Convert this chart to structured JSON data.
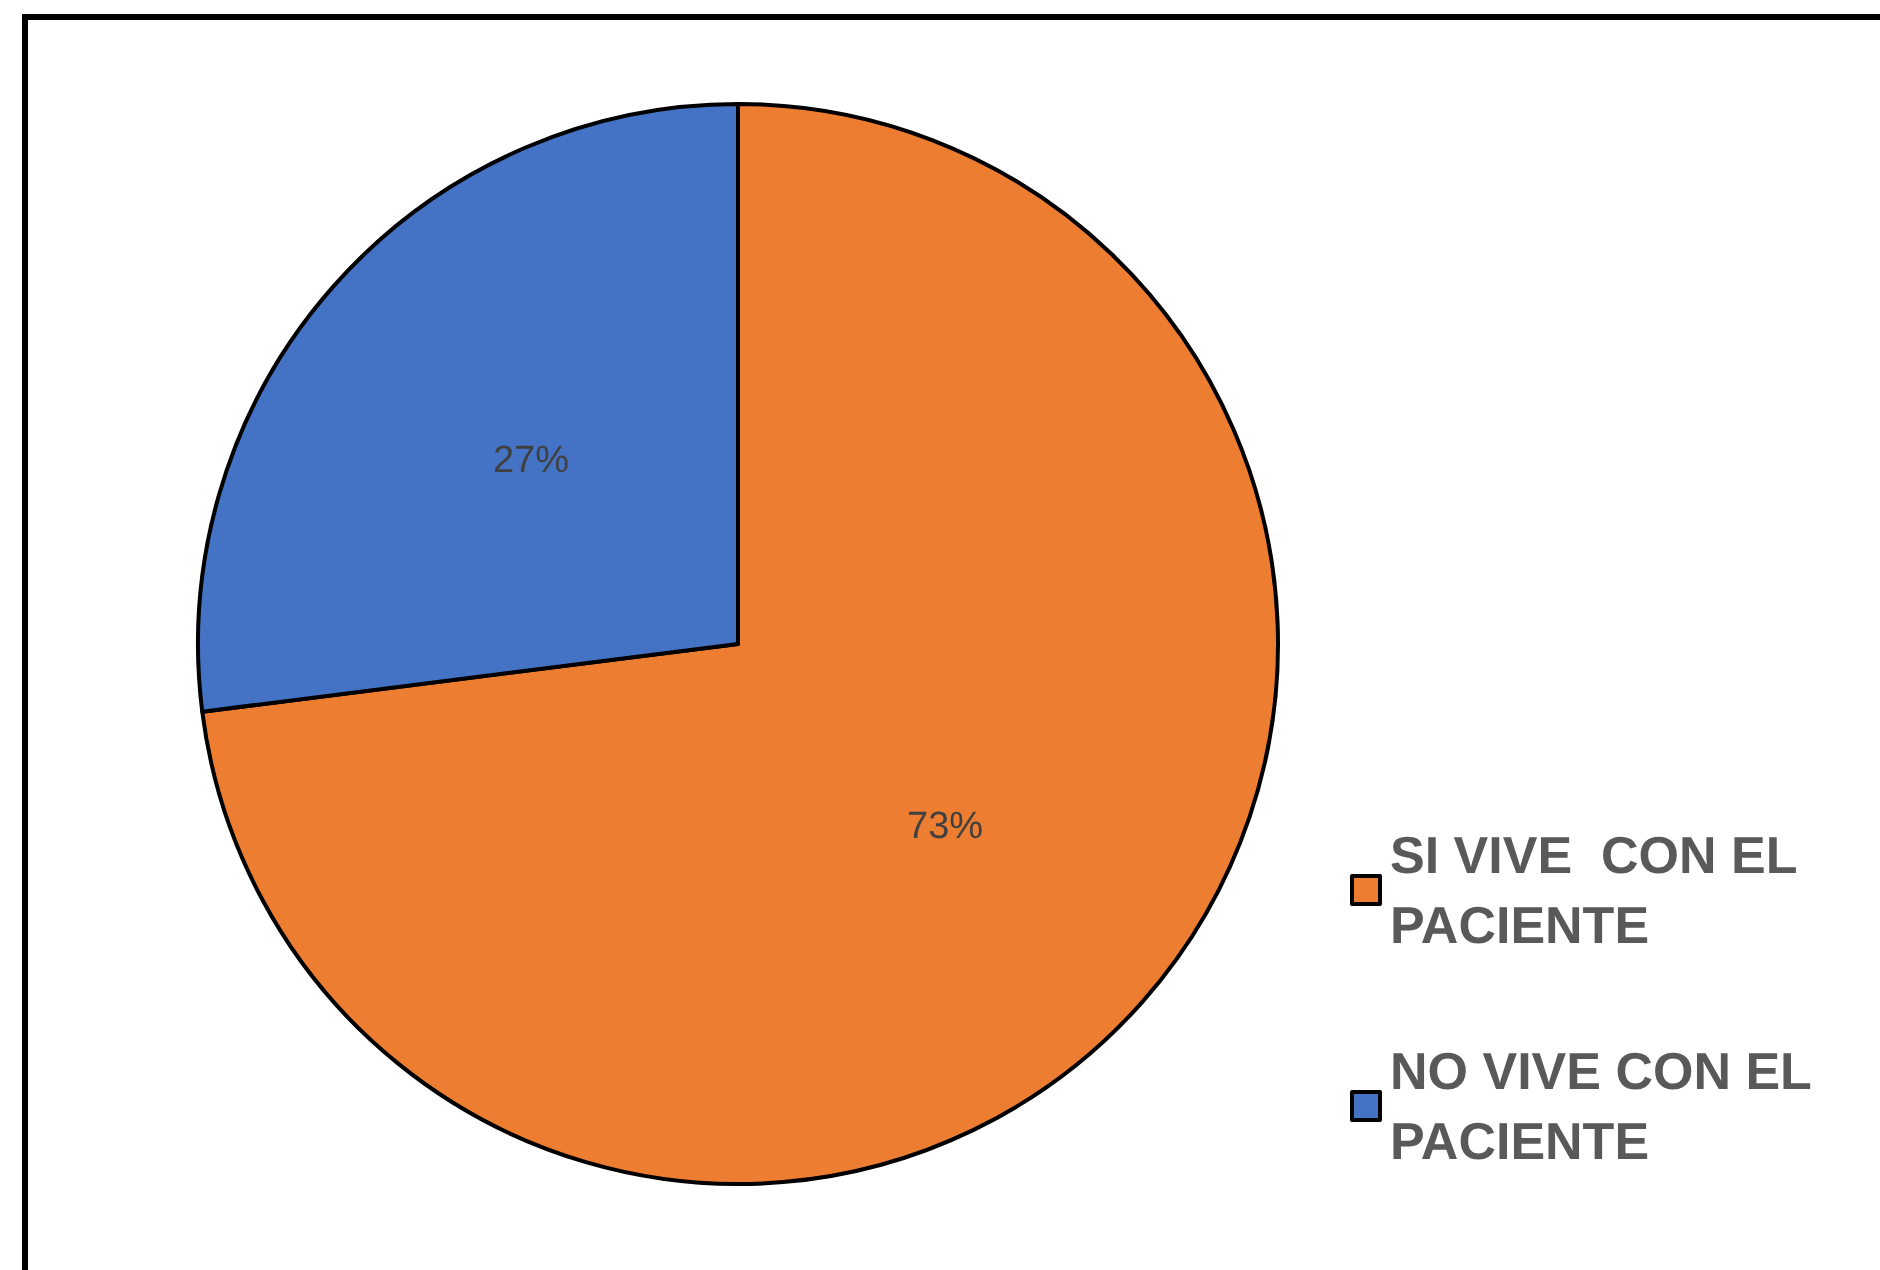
{
  "chart_data": {
    "type": "pie",
    "categories": [
      "SI VIVE  CON EL PACIENTE",
      "NO VIVE CON EL PACIENTE"
    ],
    "values": [
      73,
      27
    ],
    "colors": [
      "#ed7d31",
      "#4472c4"
    ],
    "value_labels": [
      "73%",
      "27%"
    ],
    "legend": "bottom right"
  }
}
